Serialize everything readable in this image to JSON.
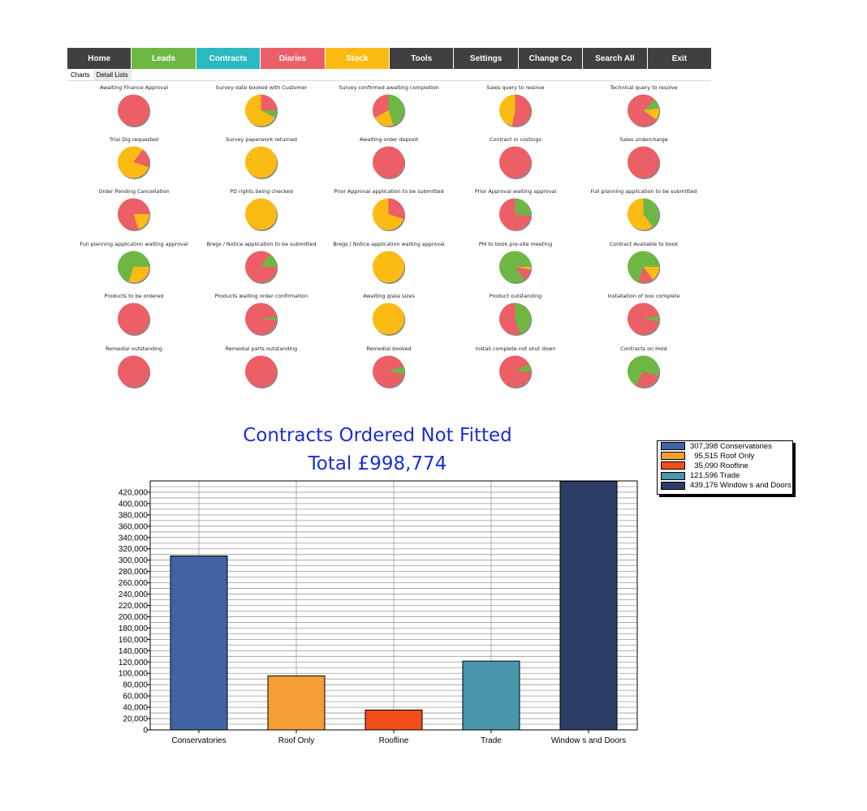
{
  "nav": {
    "items": [
      {
        "id": "home",
        "label": "Home",
        "color": "#404040"
      },
      {
        "id": "leads",
        "label": "Leads",
        "color": "#6fb744"
      },
      {
        "id": "contracts",
        "label": "Contracts",
        "color": "#2ab9c1"
      },
      {
        "id": "diaries",
        "label": "Diaries",
        "color": "#ec5f66"
      },
      {
        "id": "stock",
        "label": "Stock",
        "color": "#fbbb12"
      },
      {
        "id": "tools",
        "label": "Tools",
        "color": "#404040"
      },
      {
        "id": "settings",
        "label": "Settings",
        "color": "#404040"
      },
      {
        "id": "change-co",
        "label": "Change Co",
        "color": "#404040"
      },
      {
        "id": "search-all",
        "label": "Search All",
        "color": "#404040"
      },
      {
        "id": "exit",
        "label": "Exit",
        "color": "#404040"
      }
    ]
  },
  "subtabs": {
    "charts": "Charts",
    "detail_lists": "Detail Lists",
    "selected": "Charts"
  },
  "pie_colors": {
    "red": "#ec5f66",
    "yellow": "#fbbb12",
    "green": "#6fb744"
  },
  "pie_charts": [
    {
      "title": "Awaiting Finance Approval",
      "slices": [
        {
          "c": "red",
          "v": 100
        }
      ]
    },
    {
      "title": "Survey date booked with Customer",
      "slices": [
        {
          "c": "red",
          "v": 25
        },
        {
          "c": "green",
          "v": 8
        },
        {
          "c": "yellow",
          "v": 67
        }
      ]
    },
    {
      "title": "Survey confirmed awaiting completion",
      "slices": [
        {
          "c": "green",
          "v": 45
        },
        {
          "c": "yellow",
          "v": 22
        },
        {
          "c": "red",
          "v": 33
        }
      ]
    },
    {
      "title": "Sales query to resolve",
      "slices": [
        {
          "c": "red",
          "v": 53
        },
        {
          "c": "yellow",
          "v": 47
        }
      ]
    },
    {
      "title": "Technical query to resolve",
      "slices": [
        {
          "c": "red",
          "v": 13
        },
        {
          "c": "green",
          "v": 10
        },
        {
          "c": "yellow",
          "v": 12
        },
        {
          "c": "red",
          "v": 65
        }
      ]
    },
    {
      "title": "Trial Dig requested",
      "slices": [
        {
          "c": "yellow",
          "v": 10
        },
        {
          "c": "red",
          "v": 20
        },
        {
          "c": "yellow",
          "v": 70
        }
      ]
    },
    {
      "title": "Survey paperwork returned",
      "slices": [
        {
          "c": "yellow",
          "v": 100
        }
      ]
    },
    {
      "title": "Awaiting order deposit",
      "slices": [
        {
          "c": "red",
          "v": 100
        }
      ]
    },
    {
      "title": "Contract in costings",
      "slices": [
        {
          "c": "red",
          "v": 100
        }
      ]
    },
    {
      "title": "Sales undercharge",
      "slices": [
        {
          "c": "red",
          "v": 100
        }
      ]
    },
    {
      "title": "Order Pending Cancellation",
      "slices": [
        {
          "c": "red",
          "v": 25
        },
        {
          "c": "yellow",
          "v": 20
        },
        {
          "c": "red",
          "v": 55
        }
      ]
    },
    {
      "title": "PD rights being checked",
      "slices": [
        {
          "c": "yellow",
          "v": 100
        }
      ]
    },
    {
      "title": "Prior Approval application to be submitted",
      "slices": [
        {
          "c": "red",
          "v": 30
        },
        {
          "c": "yellow",
          "v": 70
        }
      ]
    },
    {
      "title": "Prior Approval waiting approval",
      "slices": [
        {
          "c": "green",
          "v": 27
        },
        {
          "c": "red",
          "v": 73
        }
      ]
    },
    {
      "title": "Full planning application to be submitted",
      "slices": [
        {
          "c": "green",
          "v": 40
        },
        {
          "c": "yellow",
          "v": 60
        }
      ]
    },
    {
      "title": "Full planning application waiting approval",
      "slices": [
        {
          "c": "green",
          "v": 25
        },
        {
          "c": "yellow",
          "v": 30
        },
        {
          "c": "green",
          "v": 45
        }
      ]
    },
    {
      "title": "Bregs / Notice application to be submitted",
      "slices": [
        {
          "c": "red",
          "v": 10
        },
        {
          "c": "green",
          "v": 15
        },
        {
          "c": "red",
          "v": 75
        }
      ]
    },
    {
      "title": "Bregs / Notice application waiting approval",
      "slices": [
        {
          "c": "yellow",
          "v": 100
        }
      ]
    },
    {
      "title": "PM to book pre-site meeting",
      "slices": [
        {
          "c": "green",
          "v": 25
        },
        {
          "c": "yellow",
          "v": 3
        },
        {
          "c": "red",
          "v": 12
        },
        {
          "c": "green",
          "v": 60
        }
      ]
    },
    {
      "title": "Contract Available to book",
      "slices": [
        {
          "c": "green",
          "v": 25
        },
        {
          "c": "yellow",
          "v": 15
        },
        {
          "c": "red",
          "v": 15
        },
        {
          "c": "green",
          "v": 45
        }
      ]
    },
    {
      "title": "Products to be ordered",
      "slices": [
        {
          "c": "red",
          "v": 100
        }
      ]
    },
    {
      "title": "Products waiting order confirmation",
      "slices": [
        {
          "c": "red",
          "v": 23
        },
        {
          "c": "green",
          "v": 4
        },
        {
          "c": "red",
          "v": 73
        }
      ]
    },
    {
      "title": "Awaiting glass sizes",
      "slices": [
        {
          "c": "yellow",
          "v": 100
        }
      ]
    },
    {
      "title": "Product outstanding",
      "slices": [
        {
          "c": "green",
          "v": 45
        },
        {
          "c": "red",
          "v": 55
        }
      ]
    },
    {
      "title": "Installation of box complete",
      "slices": [
        {
          "c": "red",
          "v": 22
        },
        {
          "c": "green",
          "v": 6
        },
        {
          "c": "red",
          "v": 72
        }
      ]
    },
    {
      "title": "Remedial outstanding",
      "slices": [
        {
          "c": "red",
          "v": 100
        }
      ]
    },
    {
      "title": "Remedial parts outstanding",
      "slices": [
        {
          "c": "red",
          "v": 100
        }
      ]
    },
    {
      "title": "Remedial booked",
      "slices": [
        {
          "c": "red",
          "v": 20
        },
        {
          "c": "green",
          "v": 8
        },
        {
          "c": "red",
          "v": 72
        }
      ]
    },
    {
      "title": "Install complete not shut down",
      "slices": [
        {
          "c": "red",
          "v": 17
        },
        {
          "c": "green",
          "v": 8
        },
        {
          "c": "red",
          "v": 75
        }
      ]
    },
    {
      "title": "Contracts on Hold",
      "slices": [
        {
          "c": "green",
          "v": 30
        },
        {
          "c": "red",
          "v": 28
        },
        {
          "c": "green",
          "v": 42
        }
      ]
    }
  ],
  "chart_data": {
    "type": "bar",
    "title": "Contracts Ordered Not Fitted",
    "subtitle": "Total £998,774",
    "categories": [
      "Conservatories",
      "Roof Only",
      "Roofline",
      "Trade",
      "Windows and Doors"
    ],
    "category_labels": [
      "Conservatories",
      "Roof Only",
      "Roofline",
      "Trade",
      "Window s and Doors"
    ],
    "values": [
      307398,
      95515,
      35090,
      121596,
      439176
    ],
    "colors": [
      "#4163a4",
      "#f59e34",
      "#f24e1a",
      "#4a97ad",
      "#2c3e66"
    ],
    "ylim": [
      0,
      440000
    ],
    "yticks": [
      0,
      20000,
      40000,
      60000,
      80000,
      100000,
      120000,
      140000,
      160000,
      180000,
      200000,
      220000,
      240000,
      260000,
      280000,
      300000,
      320000,
      340000,
      360000,
      380000,
      400000,
      420000
    ],
    "ytick_labels": [
      "0",
      "20,000",
      "40,000",
      "60,000",
      "80,000",
      "100,000",
      "120,000",
      "140,000",
      "160,000",
      "180,000",
      "200,000",
      "220,000",
      "240,000",
      "260,000",
      "280,000",
      "300,000",
      "320,000",
      "340,000",
      "360,000",
      "380,000",
      "400,000",
      "420,000"
    ],
    "grid": true,
    "legend_position": "top-right",
    "legend": [
      {
        "label": "307,398 Conservatories",
        "color": "#4163a4"
      },
      {
        "label": "  95,515 Roof Only",
        "color": "#f59e34"
      },
      {
        "label": "  35,090 Roofline",
        "color": "#f24e1a"
      },
      {
        "label": "121,596 Trade",
        "color": "#4a97ad"
      },
      {
        "label": "439,176 Window s and Doors",
        "color": "#2c3e66"
      }
    ]
  }
}
